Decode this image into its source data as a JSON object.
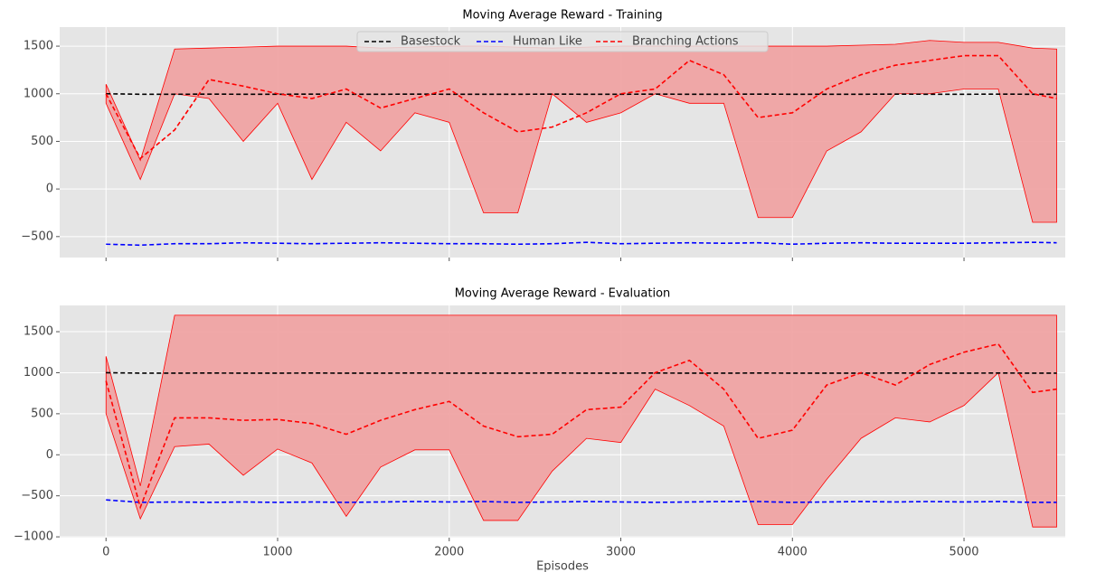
{
  "chart_data": [
    {
      "type": "line",
      "title": "Moving Average Reward - Training",
      "x": [
        0,
        200,
        400,
        600,
        800,
        1000,
        1200,
        1400,
        1600,
        1800,
        2000,
        2200,
        2400,
        2600,
        2800,
        3000,
        3200,
        3400,
        3600,
        3800,
        4000,
        4200,
        4400,
        4600,
        4800,
        5000,
        5200,
        5400,
        5540
      ],
      "xlim": [
        -270,
        5590
      ],
      "ylim": [
        -720,
        1700
      ],
      "yticks": [
        {
          "value": -500,
          "label": "−500"
        },
        0,
        500,
        1000,
        1500
      ],
      "grid": true,
      "legend": "top",
      "series": [
        {
          "name": "Basestock",
          "color": "#000000",
          "values": [
            1000,
            995,
            995,
            996,
            995,
            995,
            996,
            995,
            995,
            996,
            995,
            995,
            995,
            996,
            995,
            995,
            996,
            995,
            995,
            996,
            995,
            995,
            995,
            996,
            995,
            995,
            996,
            995,
            995
          ]
        },
        {
          "name": "Human Like",
          "color": "#0000ff",
          "values": [
            -580,
            -590,
            -575,
            -575,
            -565,
            -570,
            -575,
            -570,
            -565,
            -570,
            -575,
            -575,
            -580,
            -575,
            -560,
            -575,
            -570,
            -565,
            -570,
            -565,
            -580,
            -570,
            -565,
            -570,
            -570,
            -570,
            -565,
            -560,
            -565
          ]
        },
        {
          "name": "Branching Actions",
          "color": "#ff0000",
          "values": [
            1000,
            320,
            620,
            1150,
            1080,
            1000,
            950,
            1050,
            850,
            950,
            1050,
            800,
            600,
            650,
            800,
            1000,
            1050,
            1350,
            1200,
            750,
            800,
            1050,
            1200,
            1300,
            1350,
            1400,
            1400,
            1000,
            950
          ],
          "band": {
            "upper": [
              1100,
              300,
              1470,
              1480,
              1490,
              1500,
              1500,
              1500,
              1480,
              1490,
              1500,
              1500,
              1490,
              1480,
              1490,
              1500,
              1500,
              1500,
              1500,
              1500,
              1500,
              1500,
              1510,
              1520,
              1560,
              1540,
              1540,
              1480,
              1470
            ],
            "lower": [
              900,
              100,
              1000,
              950,
              500,
              900,
              100,
              700,
              400,
              800,
              700,
              -250,
              -250,
              1000,
              700,
              800,
              1000,
              900,
              900,
              -300,
              -300,
              400,
              600,
              1000,
              1000,
              1050,
              1050,
              -350,
              -350
            ],
            "color": "#f0a0a0"
          }
        }
      ]
    },
    {
      "type": "line",
      "title": "Moving Average Reward - Evaluation",
      "xlabel": "Episodes",
      "x": [
        0,
        200,
        400,
        600,
        800,
        1000,
        1200,
        1400,
        1600,
        1800,
        2000,
        2200,
        2400,
        2600,
        2800,
        3000,
        3200,
        3400,
        3600,
        3800,
        4000,
        4200,
        4400,
        4600,
        4800,
        5000,
        5200,
        5400,
        5540
      ],
      "xlim": [
        -270,
        5590
      ],
      "ylim": [
        -1010,
        1820
      ],
      "xticks": [
        0,
        1000,
        2000,
        3000,
        4000,
        5000
      ],
      "yticks": [
        {
          "value": -1000,
          "label": "−1000"
        },
        {
          "value": -500,
          "label": "−500"
        },
        0,
        500,
        1000,
        1500
      ],
      "grid": true,
      "series": [
        {
          "name": "Basestock",
          "color": "#000000",
          "values": [
            1000,
            995,
            995,
            996,
            995,
            995,
            996,
            995,
            995,
            996,
            995,
            995,
            995,
            996,
            995,
            995,
            996,
            995,
            995,
            996,
            995,
            995,
            995,
            996,
            995,
            995,
            996,
            995,
            995
          ]
        },
        {
          "name": "Human Like",
          "color": "#0000ff",
          "values": [
            -550,
            -580,
            -575,
            -580,
            -575,
            -580,
            -575,
            -580,
            -575,
            -570,
            -575,
            -570,
            -580,
            -575,
            -570,
            -575,
            -580,
            -575,
            -570,
            -570,
            -580,
            -575,
            -570,
            -575,
            -570,
            -575,
            -570,
            -580,
            -580
          ]
        },
        {
          "name": "Branching Actions",
          "color": "#ff0000",
          "values": [
            900,
            -640,
            450,
            450,
            420,
            430,
            380,
            250,
            420,
            550,
            650,
            350,
            220,
            250,
            550,
            580,
            1000,
            1150,
            800,
            200,
            300,
            850,
            1000,
            850,
            1100,
            1250,
            1350,
            760,
            800
          ],
          "band": {
            "upper": [
              1200,
              -380,
              1700,
              1700,
              1700,
              1700,
              1700,
              1700,
              1700,
              1700,
              1700,
              1700,
              1700,
              1700,
              1700,
              1700,
              1700,
              1700,
              1700,
              1700,
              1700,
              1700,
              1700,
              1700,
              1700,
              1700,
              1700,
              1700,
              1700
            ],
            "lower": [
              500,
              -780,
              100,
              130,
              -250,
              70,
              -100,
              -750,
              -150,
              60,
              60,
              -800,
              -800,
              -200,
              200,
              150,
              800,
              600,
              350,
              -850,
              -850,
              -300,
              200,
              450,
              400,
              600,
              1000,
              -880,
              -880
            ],
            "color": "#f0a0a0"
          }
        }
      ]
    }
  ]
}
